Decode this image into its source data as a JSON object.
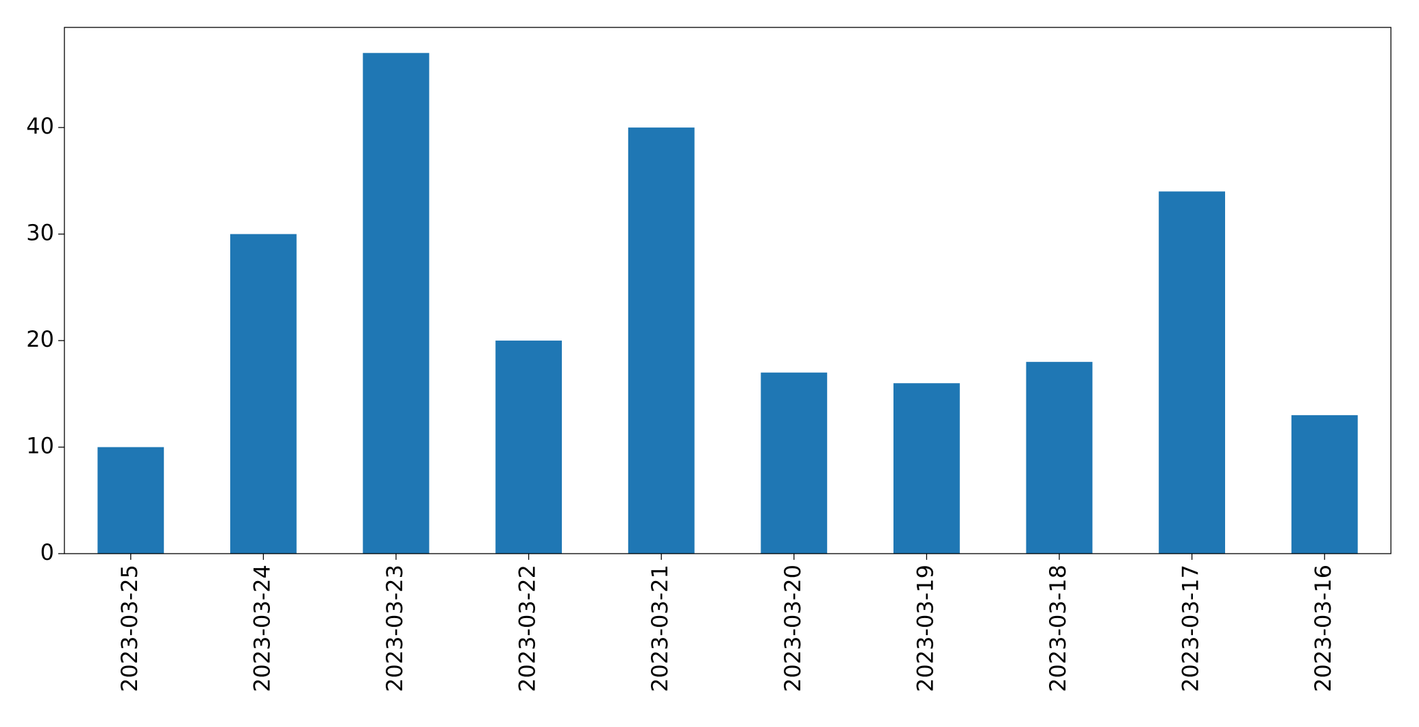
{
  "chart_data": {
    "type": "bar",
    "categories": [
      "2023-03-25",
      "2023-03-24",
      "2023-03-23",
      "2023-03-22",
      "2023-03-21",
      "2023-03-20",
      "2023-03-19",
      "2023-03-18",
      "2023-03-17",
      "2023-03-16"
    ],
    "values": [
      10,
      30,
      47,
      20,
      40,
      17,
      16,
      18,
      34,
      13
    ],
    "color": "#1f77b4",
    "ylim": [
      0,
      49.4
    ],
    "yticks": [
      0,
      10,
      20,
      30,
      40
    ],
    "grid": false
  }
}
